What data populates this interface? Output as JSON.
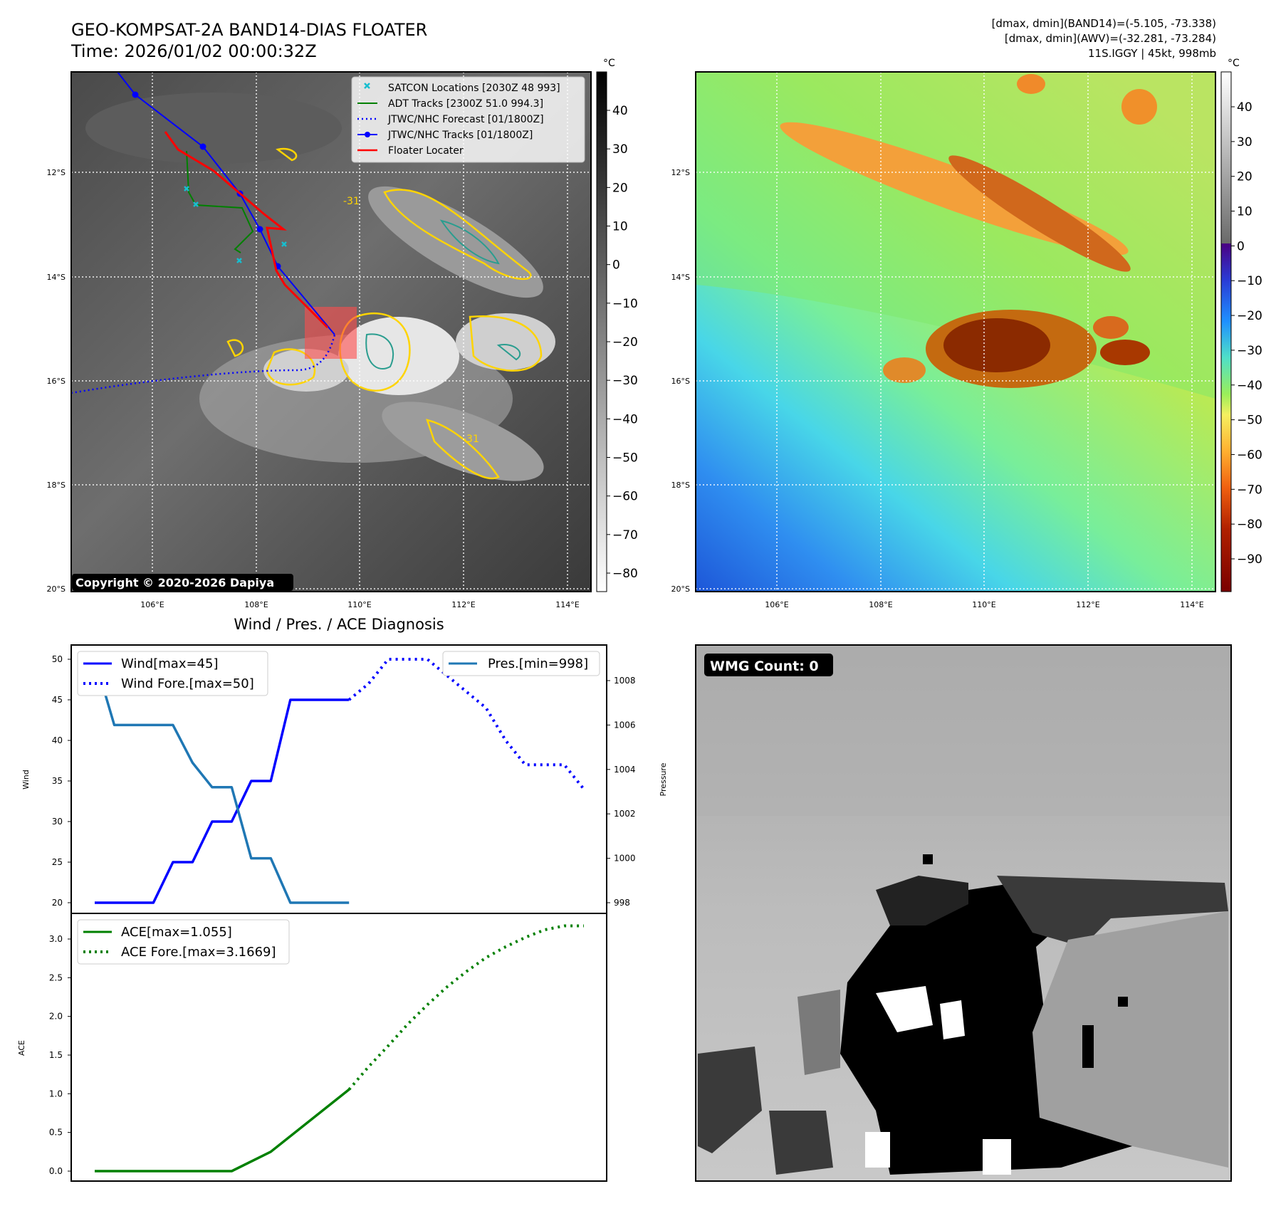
{
  "header": {
    "title_line1": "GEO-KOMPSAT-2A BAND14-DIAS FLOATER",
    "title_line2": "Time: 2026/01/02 00:00:32Z",
    "info_line1": "[dmax, dmin](BAND14)=(-5.105, -73.338)",
    "info_line2": "[dmax, dmin](AWV)=(-32.281, -73.284)",
    "info_line3": "11S.IGGY | 45kt, 998mb"
  },
  "map": {
    "lat_ticks": [
      "12°S",
      "14°S",
      "16°S",
      "18°S",
      "20°S"
    ],
    "lon_ticks": [
      "106°E",
      "108°E",
      "110°E",
      "112°E",
      "114°E"
    ],
    "copyright": "Copyright © 2020-2026 Dapiya",
    "contour_label": "-31",
    "colorbar_unit": "°C",
    "gray_colorbar_ticks": [
      "40",
      "30",
      "20",
      "10",
      "0",
      "−10",
      "−20",
      "−30",
      "−40",
      "−50",
      "−60",
      "−70",
      "−80"
    ],
    "color_colorbar_ticks": [
      "40",
      "30",
      "20",
      "10",
      "0",
      "−10",
      "−20",
      "−30",
      "−40",
      "−50",
      "−60",
      "−70",
      "−80",
      "−90"
    ],
    "legend": [
      {
        "label": "SATCON Locations [2030Z 48 993]",
        "color": "#17becf"
      },
      {
        "label": "ADT Tracks [2300Z 51.0 994.3]",
        "color": "#008000"
      },
      {
        "label": "JTWC/NHC Forecast [01/1800Z]",
        "color": "#0000ff"
      },
      {
        "label": "JTWC/NHC Tracks [01/1800Z]",
        "color": "#0000ff"
      },
      {
        "label": "Floater Locater",
        "color": "#ff0000"
      }
    ]
  },
  "wmg": {
    "label": "WMG Count: 0"
  },
  "chart_data": [
    {
      "type": "line",
      "title": "Wind / Pres. / ACE Diagnosis",
      "ylabel": "Wind",
      "y2label": "Pressure",
      "ylim": [
        19,
        51
      ],
      "y2lim": [
        997.5,
        1009.2
      ],
      "yticks": [
        20,
        25,
        30,
        35,
        40,
        45,
        50
      ],
      "y2ticks": [
        998,
        1000,
        1002,
        1004,
        1006,
        1008
      ],
      "x_index_range": [
        0,
        25
      ],
      "series": [
        {
          "name": "Wind[max=45]",
          "axis": "left",
          "style": "solid",
          "color": "#0000ff",
          "x": [
            0,
            1,
            2,
            3,
            4,
            5,
            6,
            7,
            8,
            9,
            10,
            11,
            12,
            13
          ],
          "values": [
            20,
            20,
            20,
            20,
            25,
            25,
            30,
            30,
            35,
            35,
            45,
            45,
            45,
            45
          ]
        },
        {
          "name": "Wind Fore.[max=50]",
          "axis": "left",
          "style": "dotted",
          "color": "#0000ff",
          "x": [
            13,
            14,
            15,
            16,
            17,
            18,
            19,
            20,
            21,
            22,
            23,
            24,
            25
          ],
          "values": [
            45,
            47,
            50,
            50,
            50,
            48,
            46,
            44,
            40,
            37,
            37,
            37,
            34
          ]
        },
        {
          "name": "Pres.[min=998]",
          "axis": "right",
          "style": "solid",
          "color": "#1f77b4",
          "x": [
            0,
            1,
            2,
            3,
            4,
            5,
            6,
            7,
            8,
            9,
            10,
            11,
            12,
            13
          ],
          "values": [
            1009,
            1006,
            1006,
            1006,
            1006,
            1004.3,
            1003.2,
            1003.2,
            1000,
            1000,
            998,
            998,
            998,
            998
          ]
        }
      ],
      "legend_placement": [
        "upper-left",
        "upper-right"
      ]
    },
    {
      "type": "line",
      "ylabel": "ACE",
      "ylim": [
        -0.1,
        3.3
      ],
      "yticks": [
        0.0,
        0.5,
        1.0,
        1.5,
        2.0,
        2.5,
        3.0
      ],
      "series": [
        {
          "name": "ACE[max=1.055]",
          "style": "solid",
          "color": "#008000",
          "x": [
            0,
            7,
            9,
            13
          ],
          "values": [
            0.0,
            0.0,
            0.25,
            1.055
          ]
        },
        {
          "name": "ACE Fore.[max=3.1669]",
          "style": "dotted",
          "color": "#008000",
          "x": [
            13,
            14,
            15,
            16,
            17,
            18,
            19,
            20,
            21,
            22,
            23,
            24,
            25
          ],
          "values": [
            1.055,
            1.35,
            1.62,
            1.9,
            2.15,
            2.38,
            2.58,
            2.76,
            2.9,
            3.02,
            3.12,
            3.17,
            3.17
          ]
        }
      ],
      "legend_placement": "upper-left"
    }
  ]
}
